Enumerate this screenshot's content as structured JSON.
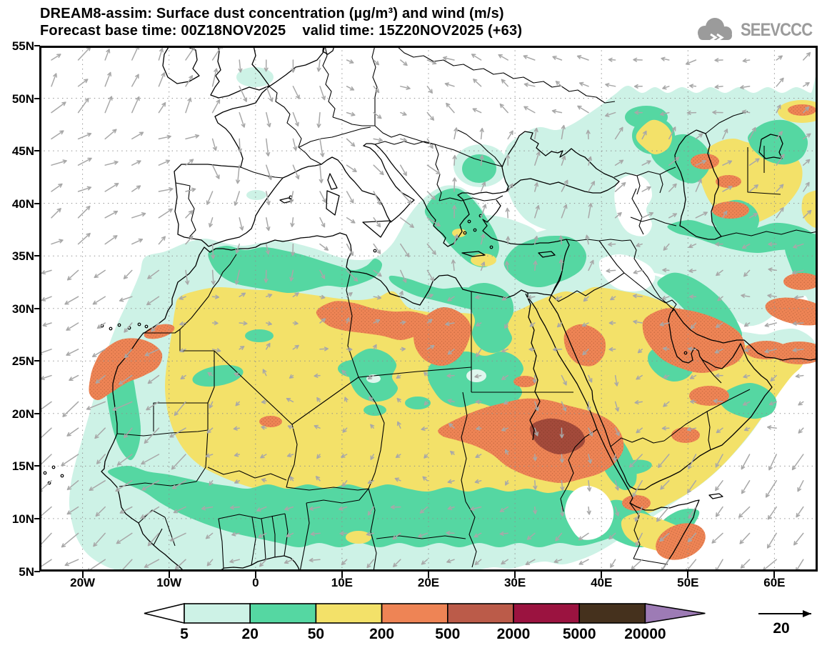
{
  "header": {
    "title": "DREAM8-assim: Surface dust concentration (µg/m³) and wind (m/s)",
    "subtitle": "Forecast base time: 00Z18NOV2025    valid time: 15Z20NOV2025 (+63)",
    "logo_text": "SEEVCCC"
  },
  "map": {
    "lat_tick_labels": [
      "55N",
      "50N",
      "45N",
      "40N",
      "35N",
      "30N",
      "25N",
      "20N",
      "15N",
      "10N",
      "5N"
    ],
    "lon_tick_labels": [
      "20W",
      "10W",
      "0",
      "10E",
      "20E",
      "30E",
      "40E",
      "50E",
      "60E"
    ]
  },
  "legend": {
    "tick_labels": [
      "5",
      "20",
      "50",
      "200",
      "500",
      "2000",
      "5000",
      "20000"
    ],
    "segment_colors": [
      "#ffffff",
      "#cdf2e6",
      "#55d7a2",
      "#f3e169",
      "#ee8455",
      "#bb5b49",
      "#9b1340",
      "#45311d",
      "#9d7bb5"
    ]
  },
  "wind_reference": {
    "label": "20"
  },
  "colors": {
    "pale_cyan": "#cdf2e6",
    "teal": "#55d7a2",
    "yellow": "#f3e169",
    "orange": "#ee8455",
    "sienna": "#a34a3b",
    "pale_core": "#dff6ee",
    "wind_arrow": "#a8a8a8",
    "grid_dots": "#8f8f8f",
    "coastline": "#000000",
    "logo_gray": "#9b9b9b"
  }
}
